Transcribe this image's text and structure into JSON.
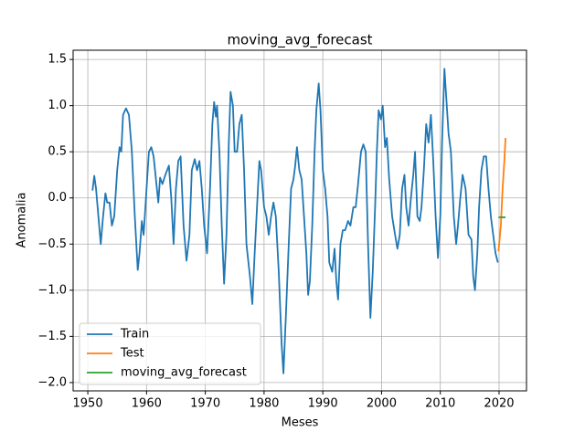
{
  "chart_data": {
    "type": "line",
    "title": "moving_avg_forecast",
    "x_label": "Meses",
    "y_label": "Anomalia",
    "xlim": [
      1947.5,
      2024.67
    ],
    "ylim": [
      -2.09,
      1.6
    ],
    "xticks": [
      1950,
      1960,
      1970,
      1980,
      1990,
      2000,
      2010,
      2020
    ],
    "yticks": [
      {
        "value": 1.5,
        "label": "1.5"
      },
      {
        "value": 1.0,
        "label": "1.0"
      },
      {
        "value": 0.5,
        "label": "0.5"
      },
      {
        "value": 0.0,
        "label": "0.0"
      },
      {
        "value": -0.5,
        "label": "−0.5"
      },
      {
        "value": -1.0,
        "label": "−1.0"
      },
      {
        "value": -1.5,
        "label": "−1.5"
      },
      {
        "value": -2.0,
        "label": "−2.0"
      }
    ],
    "grid": true,
    "legend": "lower left",
    "series": [
      {
        "name": "Train",
        "color": "#1f77b4",
        "x": [
          1950.8,
          1951.1,
          1951.4,
          1951.8,
          1952.2,
          1952.6,
          1953.0,
          1953.3,
          1953.7,
          1954.1,
          1954.5,
          1955.0,
          1955.4,
          1955.7,
          1956.0,
          1956.5,
          1957.0,
          1957.5,
          1958.0,
          1958.5,
          1958.8,
          1959.2,
          1959.5,
          1960.0,
          1960.4,
          1960.8,
          1961.2,
          1961.6,
          1962.0,
          1962.3,
          1962.7,
          1963.2,
          1963.8,
          1964.2,
          1964.6,
          1965.0,
          1965.4,
          1965.8,
          1966.3,
          1966.8,
          1967.3,
          1967.7,
          1968.2,
          1968.6,
          1969.0,
          1969.4,
          1969.8,
          1970.3,
          1970.8,
          1971.2,
          1971.5,
          1971.8,
          1972.0,
          1972.4,
          1972.8,
          1973.2,
          1973.6,
          1974.0,
          1974.3,
          1974.7,
          1975.0,
          1975.4,
          1975.8,
          1976.2,
          1976.6,
          1977.0,
          1977.6,
          1978.0,
          1978.4,
          1978.8,
          1979.2,
          1979.5,
          1980.0,
          1980.4,
          1980.8,
          1981.2,
          1981.6,
          1982.0,
          1982.5,
          1983.0,
          1983.3,
          1983.7,
          1984.2,
          1984.6,
          1985.0,
          1985.3,
          1985.6,
          1986.0,
          1986.4,
          1986.8,
          1987.2,
          1987.5,
          1987.8,
          1988.2,
          1988.6,
          1988.9,
          1989.3,
          1989.6,
          1990.0,
          1990.4,
          1990.8,
          1991.1,
          1991.6,
          1992.0,
          1992.3,
          1992.6,
          1993.0,
          1993.4,
          1993.8,
          1994.3,
          1994.7,
          1995.2,
          1995.6,
          1996.0,
          1996.5,
          1996.9,
          1997.3,
          1997.7,
          1998.1,
          1998.5,
          1998.9,
          1999.2,
          1999.5,
          1999.9,
          2000.2,
          2000.6,
          2000.9,
          2001.3,
          2001.8,
          2002.3,
          2002.7,
          2003.1,
          2003.5,
          2003.9,
          2004.2,
          2004.6,
          2005.0,
          2005.4,
          2005.7,
          2006.1,
          2006.5,
          2006.8,
          2007.2,
          2007.6,
          2008.0,
          2008.4,
          2008.8,
          2009.2,
          2009.6,
          2010.0,
          2010.3,
          2010.7,
          2011.0,
          2011.4,
          2011.8,
          2012.3,
          2012.7,
          2013.0,
          2013.4,
          2013.8,
          2014.3,
          2014.8,
          2015.3,
          2015.6,
          2015.9,
          2016.3,
          2016.6,
          2017.0,
          2017.4,
          2017.8,
          2018.2,
          2018.6,
          2019.0,
          2019.4,
          2019.8
        ],
        "values": [
          0.08,
          0.24,
          0.1,
          -0.2,
          -0.5,
          -0.2,
          0.05,
          -0.05,
          -0.05,
          -0.3,
          -0.2,
          0.3,
          0.55,
          0.5,
          0.9,
          0.97,
          0.9,
          0.5,
          -0.2,
          -0.78,
          -0.6,
          -0.25,
          -0.4,
          0.1,
          0.5,
          0.55,
          0.45,
          0.2,
          -0.05,
          0.22,
          0.15,
          0.25,
          0.35,
          0.0,
          -0.5,
          0.1,
          0.4,
          0.45,
          -0.3,
          -0.68,
          -0.4,
          0.3,
          0.42,
          0.3,
          0.4,
          0.1,
          -0.3,
          -0.6,
          0.1,
          0.8,
          1.04,
          0.88,
          1.0,
          0.5,
          -0.3,
          -0.93,
          -0.4,
          0.6,
          1.15,
          1.0,
          0.5,
          0.5,
          0.8,
          0.9,
          0.3,
          -0.5,
          -0.85,
          -1.15,
          -0.6,
          -0.1,
          0.4,
          0.3,
          -0.1,
          -0.2,
          -0.4,
          -0.2,
          -0.05,
          -0.2,
          -0.8,
          -1.6,
          -1.9,
          -1.3,
          -0.5,
          0.1,
          0.2,
          0.35,
          0.55,
          0.3,
          0.2,
          -0.2,
          -0.6,
          -1.05,
          -0.9,
          -0.3,
          0.5,
          0.95,
          1.24,
          0.95,
          0.3,
          0.1,
          -0.2,
          -0.7,
          -0.8,
          -0.55,
          -0.9,
          -1.1,
          -0.5,
          -0.35,
          -0.35,
          -0.25,
          -0.3,
          -0.1,
          -0.1,
          0.15,
          0.5,
          0.58,
          0.5,
          -0.5,
          -1.3,
          -0.8,
          -0.1,
          0.5,
          0.95,
          0.85,
          1.0,
          0.55,
          0.65,
          0.2,
          -0.2,
          -0.4,
          -0.55,
          -0.4,
          0.1,
          0.25,
          -0.1,
          -0.3,
          0.0,
          0.25,
          0.5,
          -0.2,
          -0.25,
          -0.1,
          0.3,
          0.8,
          0.6,
          0.9,
          0.4,
          -0.2,
          -0.65,
          -0.2,
          0.6,
          1.4,
          1.1,
          0.7,
          0.5,
          -0.2,
          -0.5,
          -0.3,
          0.0,
          0.25,
          0.1,
          -0.4,
          -0.45,
          -0.85,
          -1.0,
          -0.6,
          -0.1,
          0.3,
          0.45,
          0.45,
          0.1,
          -0.2,
          -0.4,
          -0.6,
          -0.7
        ]
      },
      {
        "name": "Test",
        "color": "#ff7f0e",
        "x": [
          2019.9,
          2020.3,
          2020.6,
          2020.9,
          2021.1
        ],
        "values": [
          -0.58,
          -0.3,
          0.1,
          0.4,
          0.65
        ]
      },
      {
        "name": "moving_avg_forecast",
        "color": "#2ca02c",
        "x": [
          2019.9,
          2021.1
        ],
        "values": [
          -0.21,
          -0.21
        ]
      }
    ]
  }
}
